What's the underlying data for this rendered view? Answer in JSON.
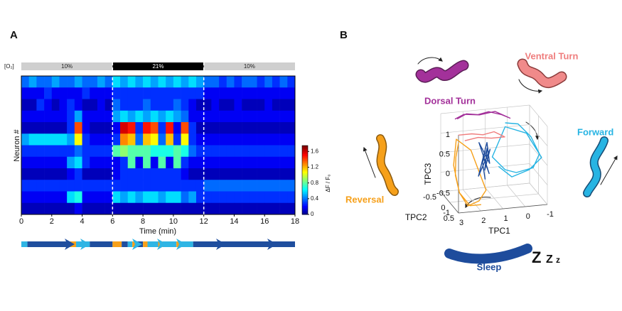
{
  "chart_data": [
    {
      "type": "heatmap",
      "panel": "A",
      "band_label": "[O₂]",
      "bands": [
        {
          "label": "10%",
          "start": 0,
          "end": 6,
          "color": "#cfcfcf"
        },
        {
          "label": "21%",
          "start": 6,
          "end": 12,
          "color": "#000000"
        },
        {
          "label": "10%",
          "start": 12,
          "end": 18,
          "color": "#cfcfcf"
        }
      ],
      "ylabel": "Neuron #",
      "xlabel": "Time (min)",
      "xlim": [
        0,
        18
      ],
      "xticks": [
        0,
        2,
        4,
        6,
        8,
        10,
        12,
        14,
        16,
        18
      ],
      "x": [
        0,
        0.5,
        1,
        1.5,
        2,
        2.5,
        3,
        3.5,
        4,
        4.5,
        5,
        5.5,
        6,
        6.5,
        7,
        7.5,
        8,
        8.5,
        9,
        9.5,
        10,
        10.5,
        11,
        11.5,
        12,
        12.5,
        13,
        13.5,
        14,
        14.5,
        15,
        15.5,
        16,
        16.5,
        17,
        17.5
      ],
      "matrix": [
        [
          0.4,
          0.5,
          0.4,
          0.4,
          0.5,
          0.4,
          0.4,
          0.5,
          0.4,
          0.4,
          0.5,
          0.4,
          0.6,
          0.5,
          0.6,
          0.5,
          0.6,
          0.5,
          0.6,
          0.5,
          0.6,
          0.5,
          0.6,
          0.5,
          0.4,
          0.4,
          0.3,
          0.4,
          0.3,
          0.4,
          0.4,
          0.3,
          0.4,
          0.3,
          0.4,
          0.3
        ],
        [
          0.2,
          0.2,
          0.2,
          0.3,
          0.2,
          0.2,
          0.2,
          0.2,
          0.3,
          0.2,
          0.2,
          0.2,
          0.3,
          0.3,
          0.3,
          0.3,
          0.3,
          0.3,
          0.3,
          0.3,
          0.3,
          0.3,
          0.3,
          0.3,
          0.2,
          0.2,
          0.2,
          0.2,
          0.2,
          0.2,
          0.2,
          0.2,
          0.2,
          0.2,
          0.2,
          0.2
        ],
        [
          0.1,
          0.1,
          0.3,
          0.2,
          0.1,
          0.2,
          0.3,
          0.2,
          0.1,
          0.1,
          0.2,
          0.1,
          0.4,
          0.3,
          0.3,
          0.3,
          0.4,
          0.3,
          0.3,
          0.3,
          0.4,
          0.3,
          0.2,
          0.1,
          0.1,
          0.2,
          0.1,
          0.1,
          0.2,
          0.1,
          0.1,
          0.1,
          0.2,
          0.1,
          0.1,
          0.1
        ],
        [
          0.2,
          0.2,
          0.2,
          0.2,
          0.2,
          0.2,
          0.3,
          0.5,
          0.2,
          0.2,
          0.2,
          0.2,
          0.5,
          0.6,
          0.5,
          0.6,
          0.5,
          0.6,
          0.5,
          0.6,
          0.5,
          0.4,
          0.2,
          0.2,
          0.2,
          0.2,
          0.2,
          0.2,
          0.2,
          0.2,
          0.2,
          0.2,
          0.2,
          0.2,
          0.2,
          0.2
        ],
        [
          0.1,
          0.1,
          0.1,
          0.1,
          0.1,
          0.1,
          0.3,
          1.4,
          0.2,
          0.1,
          0.1,
          0.1,
          0.2,
          1.6,
          1.5,
          0.3,
          1.5,
          1.4,
          0.3,
          1.5,
          0.2,
          1.4,
          0.3,
          0.1,
          0.1,
          0.1,
          0.1,
          0.1,
          0.1,
          0.1,
          0.1,
          0.1,
          0.1,
          0.1,
          0.1,
          0.1
        ],
        [
          0.5,
          0.6,
          0.6,
          0.6,
          0.6,
          0.6,
          0.5,
          1.1,
          0.3,
          0.2,
          0.2,
          0.2,
          0.3,
          1.3,
          1.2,
          0.4,
          1.2,
          1.1,
          0.4,
          1.2,
          0.3,
          1.1,
          0.3,
          0.2,
          0.2,
          0.2,
          0.2,
          0.2,
          0.2,
          0.2,
          0.2,
          0.2,
          0.2,
          0.2,
          0.2,
          0.2
        ],
        [
          0.3,
          0.3,
          0.3,
          0.3,
          0.3,
          0.3,
          0.3,
          0.4,
          0.3,
          0.3,
          0.3,
          0.3,
          0.8,
          0.9,
          0.8,
          0.8,
          0.8,
          0.7,
          0.7,
          0.7,
          0.8,
          0.7,
          0.4,
          0.3,
          0.3,
          0.3,
          0.3,
          0.3,
          0.3,
          0.3,
          0.3,
          0.3,
          0.3,
          0.3,
          0.3,
          0.3
        ],
        [
          0.2,
          0.2,
          0.2,
          0.2,
          0.2,
          0.2,
          0.5,
          0.6,
          0.3,
          0.2,
          0.2,
          0.2,
          0.2,
          0.3,
          0.8,
          0.2,
          0.8,
          0.2,
          0.8,
          0.2,
          0.8,
          0.3,
          0.2,
          0.2,
          0.2,
          0.2,
          0.2,
          0.2,
          0.2,
          0.2,
          0.2,
          0.2,
          0.2,
          0.2,
          0.2,
          0.2
        ],
        [
          0.1,
          0.1,
          0.1,
          0.1,
          0.1,
          0.1,
          0.2,
          0.3,
          0.1,
          0.1,
          0.1,
          0.1,
          0.2,
          0.3,
          0.3,
          0.3,
          0.3,
          0.3,
          0.3,
          0.3,
          0.3,
          0.2,
          0.1,
          0.1,
          0.1,
          0.1,
          0.1,
          0.1,
          0.1,
          0.1,
          0.1,
          0.1,
          0.1,
          0.1,
          0.1,
          0.1
        ],
        [
          0.3,
          0.3,
          0.3,
          0.3,
          0.3,
          0.3,
          0.3,
          0.3,
          0.3,
          0.3,
          0.3,
          0.3,
          0.3,
          0.3,
          0.3,
          0.3,
          0.3,
          0.3,
          0.3,
          0.3,
          0.3,
          0.3,
          0.3,
          0.3,
          0.4,
          0.4,
          0.4,
          0.4,
          0.4,
          0.4,
          0.4,
          0.4,
          0.4,
          0.4,
          0.4,
          0.4
        ],
        [
          0.2,
          0.2,
          0.2,
          0.2,
          0.2,
          0.2,
          0.6,
          0.7,
          0.2,
          0.2,
          0.2,
          0.2,
          0.6,
          0.5,
          0.6,
          0.5,
          0.6,
          0.6,
          0.5,
          0.6,
          0.6,
          0.4,
          0.5,
          0.3,
          0.3,
          0.3,
          0.3,
          0.3,
          0.3,
          0.3,
          0.3,
          0.3,
          0.3,
          0.3,
          0.3,
          0.3
        ],
        [
          0.1,
          0.1,
          0.1,
          0.1,
          0.1,
          0.1,
          0.1,
          0.2,
          0.1,
          0.1,
          0.1,
          0.1,
          0.1,
          0.1,
          0.1,
          0.1,
          0.1,
          0.1,
          0.1,
          0.1,
          0.1,
          0.1,
          0.1,
          0.1,
          0.1,
          0.1,
          0.1,
          0.1,
          0.1,
          0.1,
          0.1,
          0.1,
          0.1,
          0.1,
          0.1,
          0.1
        ]
      ],
      "clim": [
        0,
        1.75
      ],
      "cticks": [
        0,
        0.4,
        0.8,
        1.2,
        1.6
      ],
      "clabel": "ΔF / F₀",
      "colormap": "jet",
      "ethogram": [
        {
          "start": 0,
          "end": 0.4,
          "color": "#2fb5e4"
        },
        {
          "start": 0.4,
          "end": 3.2,
          "color": "#1f4e9e"
        },
        {
          "start": 3.2,
          "end": 3.6,
          "color": "#f6a01a"
        },
        {
          "start": 3.6,
          "end": 4.5,
          "color": "#2fb5e4"
        },
        {
          "start": 4.5,
          "end": 6,
          "color": "#1f4e9e"
        },
        {
          "start": 6,
          "end": 6.6,
          "color": "#f6a01a"
        },
        {
          "start": 6.6,
          "end": 7,
          "color": "#1f4e9e"
        },
        {
          "start": 7,
          "end": 7.3,
          "color": "#2fb5e4"
        },
        {
          "start": 7.3,
          "end": 7.5,
          "color": "#f6a01a"
        },
        {
          "start": 7.5,
          "end": 8,
          "color": "#1f4e9e"
        },
        {
          "start": 8,
          "end": 8.3,
          "color": "#f6a01a"
        },
        {
          "start": 8.3,
          "end": 9,
          "color": "#2fb5e4"
        },
        {
          "start": 9,
          "end": 9.3,
          "color": "#f6a01a"
        },
        {
          "start": 9.3,
          "end": 10.2,
          "color": "#2fb5e4"
        },
        {
          "start": 10.2,
          "end": 10.5,
          "color": "#f6a01a"
        },
        {
          "start": 10.5,
          "end": 11.3,
          "color": "#2fb5e4"
        },
        {
          "start": 11.3,
          "end": 18,
          "color": "#1f4e9e"
        }
      ]
    },
    {
      "type": "line3d",
      "panel": "B",
      "xlabel": "TPC1",
      "ylabel": "TPC2",
      "zlabel": "TPC3",
      "xlim": [
        -1,
        3
      ],
      "xticks": [
        3,
        2,
        1,
        0,
        -1
      ],
      "ylim": [
        -0.5,
        0.5
      ],
      "yticks": [
        -0.5,
        0,
        0.5
      ],
      "zlim": [
        -1,
        1
      ],
      "zticks": [
        -1,
        -0.5,
        0,
        0.5,
        1
      ],
      "grid": true,
      "series": [
        {
          "color": "#27b4e3",
          "x": [
            0.5,
            0,
            -0.5,
            -0.8,
            -0.6,
            0,
            0.5,
            1,
            0.5,
            -0.3,
            -0.9,
            -0.5,
            0.2,
            0.8
          ],
          "y": [
            0,
            0.1,
            0.2,
            0.3,
            0.2,
            0,
            0,
            -0.1,
            0,
            0.2,
            0.3,
            0.1,
            0,
            0
          ],
          "z": [
            0.9,
            0.9,
            0.6,
            0.2,
            -0.2,
            -0.4,
            -0.3,
            0,
            0.8,
            0.7,
            0.1,
            -0.3,
            -0.5,
            -0.2
          ]
        },
        {
          "color": "#f6a01a",
          "x": [
            2.6,
            2.8,
            2.9,
            2.8,
            2.5,
            2,
            1.6,
            2.2,
            2.7,
            2.9,
            2.8,
            2.4,
            1.9
          ],
          "y": [
            0,
            0.1,
            0.2,
            0.3,
            0.4,
            0.4,
            0.3,
            0.2,
            0,
            0.1,
            0.3,
            0.4,
            0.4
          ],
          "z": [
            0.5,
            0.2,
            -0.2,
            -0.6,
            -0.9,
            -0.8,
            -0.6,
            0.4,
            0.6,
            0,
            -0.6,
            -0.9,
            -0.9
          ]
        },
        {
          "color": "#a3319a",
          "x": [
            2.5,
            2,
            1.5,
            1,
            0.5,
            0.2,
            0.8,
            1.5,
            2.2,
            2.6
          ],
          "y": [
            -0.2,
            -0.3,
            -0.3,
            -0.3,
            -0.2,
            -0.1,
            -0.2,
            -0.2,
            -0.2,
            -0.2
          ],
          "z": [
            1,
            1.05,
            1,
            1.05,
            1,
            0.95,
            1.1,
            1.05,
            1.1,
            1
          ]
        },
        {
          "color": "#ef7d7d",
          "x": [
            2.6,
            2,
            1.5,
            1,
            0.6,
            1.2,
            1.8,
            2.4
          ],
          "y": [
            0,
            0,
            0,
            0,
            0.1,
            0.1,
            0.1,
            0.1
          ],
          "z": [
            0.7,
            0.7,
            0.65,
            0.7,
            0.6,
            0.6,
            0.65,
            0.6
          ]
        },
        {
          "color": "#1e4c9c",
          "x": [
            1.5,
            1.3,
            1.6,
            1.2,
            1.4,
            1.7,
            1.1,
            1.5,
            1.3,
            1.6,
            1.4
          ],
          "y": [
            0,
            0.1,
            -0.1,
            0,
            0.1,
            0,
            -0.1,
            0.1,
            0,
            0.1,
            0
          ],
          "z": [
            0.1,
            -0.3,
            0.4,
            -0.1,
            0.5,
            -0.4,
            0.2,
            -0.2,
            0.3,
            0,
            -0.5
          ]
        }
      ],
      "annotations": [
        {
          "text": "Dorsal Turn",
          "color": "#a3319a"
        },
        {
          "text": "Ventral Turn",
          "color": "#ef7d7d"
        },
        {
          "text": "Forward",
          "color": "#27b4e3"
        },
        {
          "text": "Reversal",
          "color": "#f6a01a"
        },
        {
          "text": "Sleep",
          "color": "#1e4c9c"
        }
      ],
      "sleep_marks": [
        "Z",
        "Z",
        "z"
      ]
    }
  ]
}
